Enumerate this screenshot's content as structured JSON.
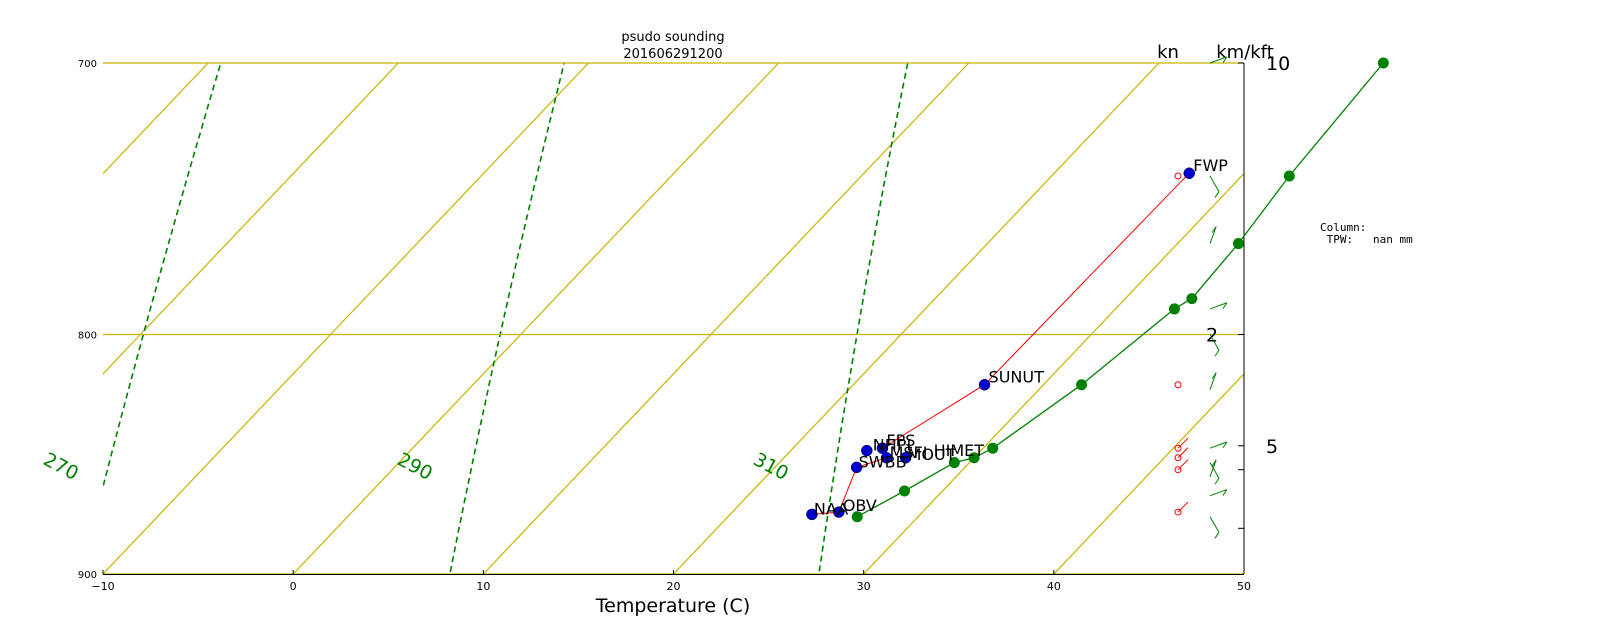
{
  "chart_data": {
    "type": "scatter",
    "title": "psudo sounding",
    "subtitle": "201606291200",
    "xlabel": "Temperature (C)",
    "xlim": [
      -10,
      50
    ],
    "x_ticks": [
      "−10",
      "0",
      "10",
      "20",
      "30",
      "40",
      "50"
    ],
    "y_scale": "log-pressure",
    "ylim": [
      900,
      700
    ],
    "y_ticks": [
      "700",
      "800",
      "900"
    ],
    "right_axis_label_kn": "kn",
    "right_axis_label_height": "km/kft",
    "height_ticks": [
      "10",
      "2",
      "5"
    ],
    "grid": false,
    "dry_adiabat_labels": [
      "270",
      "290",
      "310"
    ],
    "colors": {
      "isotherm": "#c8b400",
      "dry_adiabat": "#008000",
      "temperature": "#008000",
      "dewpoint_line": "#ff0000",
      "dewpoint_marker": "#0000cc",
      "wind_barbs_station": "#ff0000",
      "wind_barbs_profile": "#008000"
    },
    "series": [
      {
        "points": [
          {
            "t": 31.8,
            "p": 700
          },
          {
            "t": 32.5,
            "p": 740
          },
          {
            "t": 33.2,
            "p": 765
          },
          {
            "t": 33.5,
            "p": 786
          },
          {
            "t": 33.1,
            "p": 790
          },
          {
            "t": 32.0,
            "p": 820
          },
          {
            "t": 30.5,
            "p": 846
          },
          {
            "t": 30.0,
            "p": 850
          },
          {
            "t": 29.2,
            "p": 852
          },
          {
            "t": 28.0,
            "p": 864
          },
          {
            "t": 26.8,
            "p": 875
          }
        ]
      },
      {
        "points": [
          {
            "label": "FWP",
            "t": 27.1,
            "p": 739
          },
          {
            "label": "SUNUT",
            "t": 26.9,
            "p": 820
          },
          {
            "label": "FPS",
            "t": 24.7,
            "p": 846
          },
          {
            "label": "NHPI",
            "t": 24.0,
            "p": 847
          },
          {
            "label": "MOUT",
            "t": 26.4,
            "p": 850
          },
          {
            "label": "MSFI",
            "t": 25.4,
            "p": 850
          },
          {
            "label": "SWBB",
            "t": 24.3,
            "p": 854
          },
          {
            "label": "OBV",
            "t": 25.6,
            "p": 873
          },
          {
            "label": "NAA",
            "t": 24.3,
            "p": 874
          }
        ],
        "extra_labels": [
          "NHPI",
          "MOUT",
          "HIMET",
          "SWBB"
        ]
      }
    ]
  },
  "info": {
    "text": "Column:\n TPW:   nan mm"
  }
}
